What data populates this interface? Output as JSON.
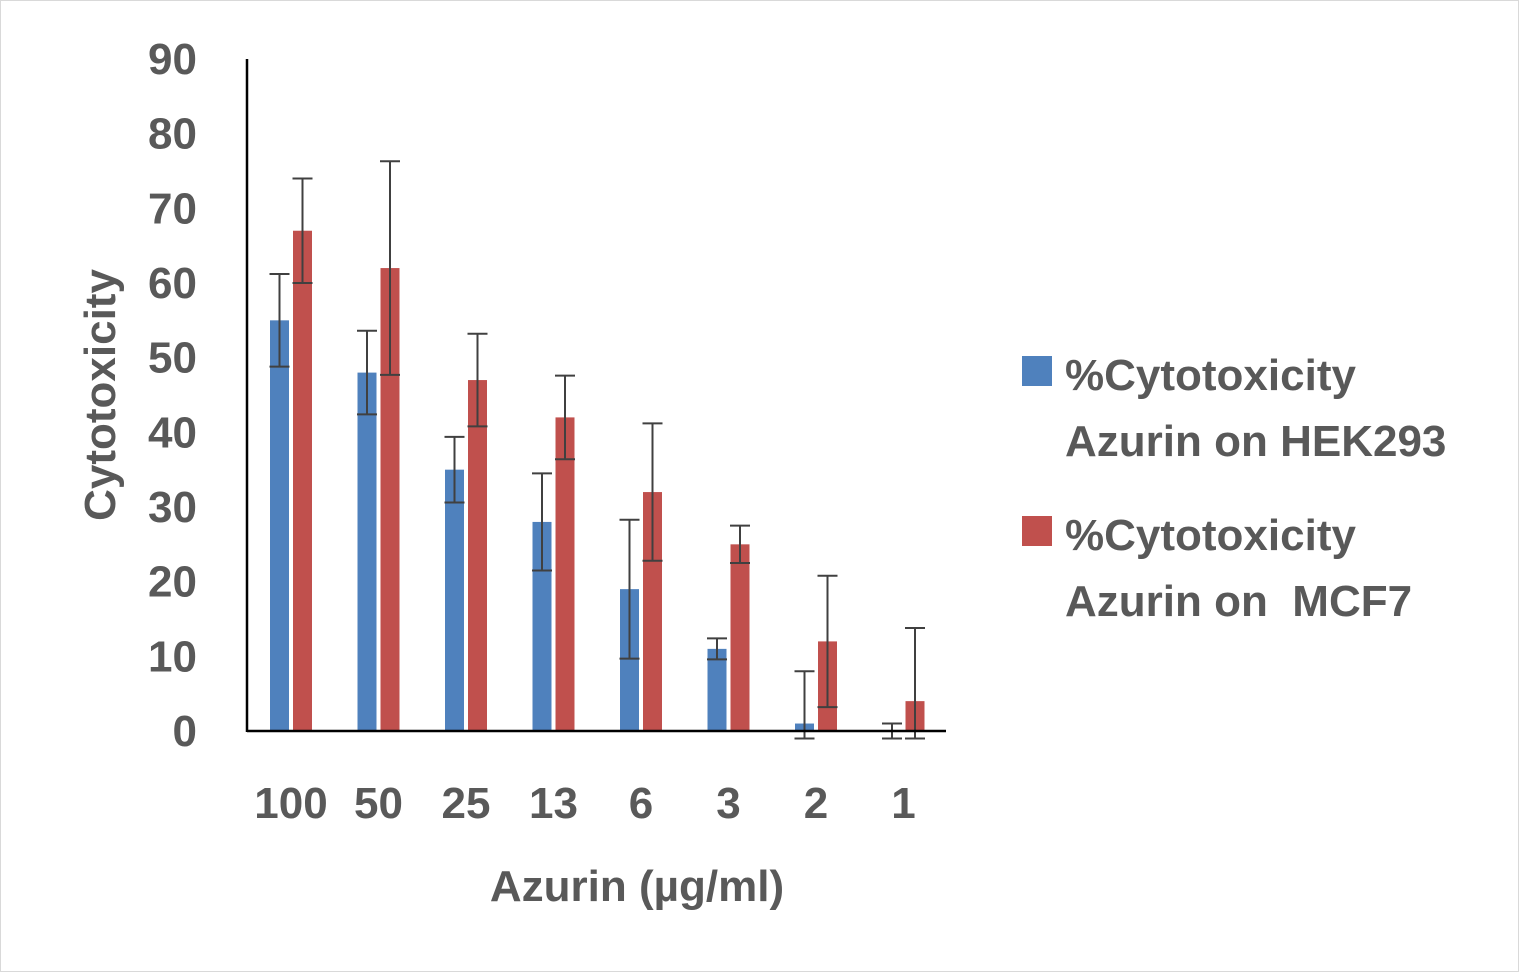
{
  "chart_data": {
    "type": "bar",
    "categories": [
      "100",
      "50",
      "25",
      "13",
      "6",
      "3",
      "2",
      "1"
    ],
    "series": [
      {
        "name": "%Cytotoxicity Azurin on HEK293",
        "legend_lines": [
          "%Cytotoxicity",
          "Azurin on HEK293"
        ],
        "color": "#4f81bd",
        "values": [
          55,
          48,
          35,
          28,
          19,
          11,
          1,
          0
        ],
        "errors": [
          6.2,
          5.6,
          4.4,
          6.5,
          9.3,
          1.4,
          7,
          1
        ]
      },
      {
        "name": "%Cytotoxicity Azurin on  MCF7",
        "legend_lines": [
          "%Cytotoxicity",
          "Azurin on  MCF7"
        ],
        "color": "#c0504d",
        "values": [
          67,
          62,
          47,
          42,
          32,
          25,
          12,
          4
        ],
        "errors": [
          7,
          14.3,
          6.2,
          5.6,
          9.2,
          2.5,
          8.8,
          9.8
        ]
      }
    ],
    "xlabel": "Azurin (µg/ml)",
    "ylabel": "Cytotoxicity",
    "ylim": [
      0,
      90
    ],
    "yticks": [
      "0",
      "10",
      "20",
      "30",
      "40",
      "50",
      "60",
      "70",
      "80",
      "90"
    ],
    "grid": false,
    "legend_position": "right",
    "error_bar_color": "#404040",
    "axis_color": "#000000",
    "text_color": "#595959"
  }
}
